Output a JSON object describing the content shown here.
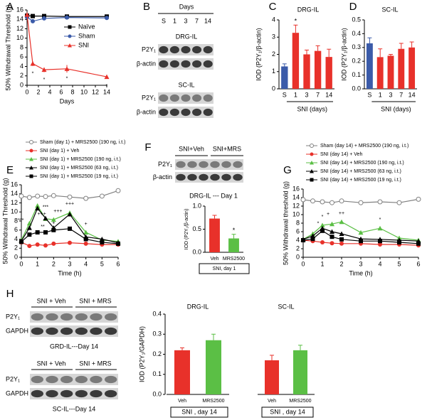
{
  "chart_data": [
    {
      "type": "line",
      "panel": "A",
      "ylabel": "50% Withdrawal Threshold (g)",
      "xlabel": "Days",
      "xlim": [
        0,
        14
      ],
      "xticks": [
        0,
        2,
        4,
        6,
        8,
        10,
        12,
        14
      ],
      "ylim": [
        0,
        16
      ],
      "yticks": [
        0,
        2,
        4,
        6,
        8,
        10,
        12,
        14,
        16
      ],
      "legend": "right",
      "series": [
        {
          "name": "Naïve",
          "color": "#000000",
          "marker": "square",
          "x": [
            0,
            1,
            3,
            7,
            14
          ],
          "values": [
            14.8,
            14.7,
            14.7,
            14.6,
            14.6
          ]
        },
        {
          "name": "Sham",
          "color": "#3b5ba9",
          "marker": "circle",
          "x": [
            0,
            1,
            3,
            7,
            14
          ],
          "values": [
            14.5,
            13.6,
            14.2,
            14.4,
            14.3
          ]
        },
        {
          "name": "SNI",
          "color": "#e8312a",
          "marker": "triangle",
          "x": [
            0,
            1,
            3,
            7,
            14
          ],
          "values": [
            15.0,
            4.6,
            3.3,
            3.5,
            1.8
          ],
          "errors": [
            0.3,
            0.5,
            0.5,
            0.8,
            0.4
          ]
        }
      ],
      "annotations": [
        "*",
        "*",
        "*",
        "*"
      ]
    },
    {
      "type": "bar",
      "panel": "C",
      "title": "DRG-IL",
      "ylabel": "IOD (P2Y₁/β-actin)",
      "xlabel": "SNI (days)",
      "categories": [
        "S",
        "1",
        "3",
        "7",
        "14"
      ],
      "values": [
        1.3,
        3.25,
        2.0,
        2.2,
        1.85
      ],
      "errors": [
        0.15,
        0.45,
        0.25,
        0.3,
        0.45
      ],
      "colors": [
        "#3b5ba9",
        "#e8312a",
        "#e8312a",
        "#e8312a",
        "#e8312a"
      ],
      "ylim": [
        0,
        4
      ],
      "yticks": [
        0,
        1,
        2,
        3,
        4
      ],
      "annotations": [
        "*"
      ]
    },
    {
      "type": "bar",
      "panel": "D",
      "title": "SC-IL",
      "ylabel": "IOD (P2Y₁/β-actin)",
      "xlabel": "SNI (days)",
      "categories": [
        "S",
        "1",
        "3",
        "7",
        "14"
      ],
      "values": [
        0.33,
        0.23,
        0.24,
        0.29,
        0.3
      ],
      "errors": [
        0.04,
        0.06,
        0.01,
        0.04,
        0.04
      ],
      "colors": [
        "#3b5ba9",
        "#e8312a",
        "#e8312a",
        "#e8312a",
        "#e8312a"
      ],
      "ylim": [
        0,
        0.5
      ],
      "yticks": [
        {
          "value": 0,
          "label": "0.0"
        },
        0.1,
        0.2,
        0.3,
        0.4,
        0.5
      ],
      "annotations": []
    },
    {
      "type": "line",
      "panel": "E",
      "ylabel": "50% Withdrawal Threshold (g)",
      "xlabel": "Time (h)",
      "xlim": [
        0,
        6
      ],
      "xticks": [
        0,
        1,
        2,
        3,
        4,
        5,
        6
      ],
      "ylim": [
        0,
        16
      ],
      "yticks": [
        0,
        2,
        4,
        6,
        8,
        10,
        12,
        14,
        16
      ],
      "legend": "top",
      "series": [
        {
          "name": "Sham (day 1) + MRS2500 (190 ng, i.t.)",
          "color": "#808080",
          "marker": "open-circle",
          "x": [
            0,
            0.5,
            1,
            1.5,
            2,
            3,
            4,
            5,
            6
          ],
          "values": [
            13.5,
            13.2,
            13.5,
            13.4,
            13.6,
            13.3,
            13.0,
            13.5,
            14.7
          ]
        },
        {
          "name": "SNI (day 1) + Veh",
          "color": "#e8312a",
          "marker": "circle",
          "x": [
            0,
            0.5,
            1,
            1.5,
            2,
            3,
            4,
            5,
            6
          ],
          "values": [
            3.3,
            2.5,
            2.8,
            2.6,
            3.0,
            3.2,
            3.0,
            2.8,
            2.8
          ]
        },
        {
          "name": "SNI (day 1) + MRS2500 (190 ng, i.t.)",
          "color": "#5bbf45",
          "marker": "triangle",
          "x": [
            0,
            0.5,
            1,
            1.5,
            2,
            3,
            4,
            5,
            6
          ],
          "values": [
            3.8,
            7.5,
            11.4,
            8.5,
            8.3,
            9.8,
            5.5,
            3.8,
            3.5
          ]
        },
        {
          "name": "SNI (day 1) + MRS2500 (63 ng, i.t.)",
          "color": "#000000",
          "marker": "triangle",
          "x": [
            0,
            0.5,
            1,
            1.5,
            2,
            3,
            4,
            5,
            6
          ],
          "values": [
            3.6,
            6.5,
            10.8,
            8.6,
            6.5,
            9.5,
            4.5,
            4.0,
            3.2
          ]
        },
        {
          "name": "SNI (day 1) + MRS2500 (19 ng, i.t.)",
          "color": "#000000",
          "marker": "square",
          "x": [
            0,
            0.5,
            1,
            1.5,
            2,
            3,
            4,
            5,
            6
          ],
          "values": [
            3.4,
            5.0,
            5.5,
            5.5,
            6.0,
            6.3,
            4.0,
            3.3,
            3.0
          ]
        }
      ],
      "annotations": [
        "***",
        "***",
        "**",
        "+++",
        "+",
        "+++",
        "+++",
        "+"
      ]
    },
    {
      "type": "bar",
      "title": "DRG-IL --- Day 1",
      "ylabel": "IOD (P2Y₁/β-actin)",
      "xlabel": "SNI, day 1",
      "categories": [
        "Veh",
        "MRS2500"
      ],
      "values": [
        0.73,
        0.3
      ],
      "errors": [
        0.07,
        0.09
      ],
      "colors": [
        "#e8312a",
        "#5bbf45"
      ],
      "ylim": [
        0,
        1
      ],
      "yticks": [
        {
          "value": 0,
          "label": "0.0"
        },
        0.5,
        {
          "value": 1,
          "label": "1.0"
        }
      ],
      "annotations": [
        "*"
      ]
    },
    {
      "type": "line",
      "panel": "G",
      "ylabel": "50% Withdrawal threshold (g)",
      "xlabel": "Time (h)",
      "xlim": [
        0,
        6
      ],
      "xticks": [
        0,
        1,
        2,
        3,
        4,
        5,
        6
      ],
      "ylim": [
        0,
        16
      ],
      "yticks": [
        0,
        2,
        4,
        6,
        8,
        10,
        12,
        14,
        16
      ],
      "legend": "top",
      "series": [
        {
          "name": "Sham (day 14) + MRS2500 (190 ng, i.t.)",
          "color": "#808080",
          "marker": "open-circle",
          "x": [
            0,
            0.5,
            1,
            1.5,
            2,
            3,
            4,
            5,
            6
          ],
          "values": [
            13.5,
            13.2,
            13.0,
            12.8,
            13.2,
            12.8,
            13.0,
            12.8,
            13.6
          ]
        },
        {
          "name": "SNI (day 14) + Veh",
          "color": "#e8312a",
          "marker": "circle",
          "x": [
            0,
            0.5,
            1,
            1.5,
            2,
            3,
            4,
            5,
            6
          ],
          "values": [
            4.0,
            3.8,
            3.5,
            3.3,
            3.2,
            3.2,
            3.0,
            3.0,
            2.8
          ]
        },
        {
          "name": "SNI (day 14) + MRS2500 (190 ng, i.t.)",
          "color": "#5bbf45",
          "marker": "triangle",
          "x": [
            0,
            0.5,
            1,
            1.5,
            2,
            3,
            4,
            5,
            6
          ],
          "values": [
            4.2,
            5.5,
            7.5,
            7.8,
            8.3,
            5.8,
            6.8,
            4.5,
            4.0
          ]
        },
        {
          "name": "SNI (day 14) + MRS2500 (63 ng, i.t.)",
          "color": "#000000",
          "marker": "triangle",
          "x": [
            0,
            0.5,
            1,
            1.5,
            2,
            3,
            4,
            5,
            6
          ],
          "values": [
            4.2,
            5.0,
            6.8,
            6.0,
            5.5,
            4.3,
            4.2,
            4.0,
            3.8
          ]
        },
        {
          "name": "SNI (day 14) + MRS2500 (19 ng, i.t.)",
          "color": "#000000",
          "marker": "square",
          "x": [
            0,
            0.5,
            1,
            1.5,
            2,
            3,
            4,
            5,
            6
          ],
          "values": [
            4.0,
            4.3,
            6.2,
            4.8,
            4.2,
            3.8,
            3.8,
            3.5,
            3.2
          ]
        }
      ],
      "annotations": [
        "*",
        "*",
        "++",
        "*",
        "+"
      ]
    },
    {
      "type": "grouped-bar",
      "ylabel": "IOD (P2Y₁/GAPDH)",
      "ylim": [
        0,
        0.4
      ],
      "yticks": [
        {
          "value": 0,
          "label": "0.0"
        },
        0.1,
        0.2,
        0.3,
        0.4
      ],
      "groups": [
        {
          "title": "DRG-IL",
          "xlabel": "SNI , day 14",
          "categories": [
            "Veh",
            "MRS2500"
          ],
          "values": [
            0.22,
            0.27
          ],
          "errors": [
            0.012,
            0.03
          ],
          "colors": [
            "#e8312a",
            "#5bbf45"
          ]
        },
        {
          "title": "SC-IL",
          "xlabel": "SNI , day 14",
          "categories": [
            "Veh",
            "MRS2500"
          ],
          "values": [
            0.17,
            0.22
          ],
          "errors": [
            0.025,
            0.025
          ],
          "colors": [
            "#e8312a",
            "#5bbf45"
          ]
        }
      ]
    }
  ],
  "blots": {
    "B": {
      "panel": "B",
      "header": "Days",
      "lanes": [
        "S",
        "1",
        "3",
        "7",
        "14"
      ],
      "sections": [
        {
          "title": "DRG-IL",
          "rows": [
            "P2Y₁",
            "β-actin"
          ]
        },
        {
          "title": "SC-IL",
          "rows": [
            "P2Y₁",
            "β-actin"
          ]
        }
      ]
    },
    "F": {
      "panel": "F",
      "lanes": [
        "SNI+Veh",
        "SNI+MRS"
      ],
      "rows": [
        "P2Y₁",
        "β-actin"
      ]
    },
    "H": {
      "panel": "H",
      "sections": [
        {
          "lanes": [
            "SNI + Veh",
            "SNI + MRS"
          ],
          "rows": [
            "P2Y₁",
            "GAPDH"
          ],
          "caption": "GRD-IL---Day 14"
        },
        {
          "lanes": [
            "SNI + Veh",
            "SNI + MRS"
          ],
          "rows": [
            "P2Y₁",
            "GAPDH"
          ],
          "caption": "SC-IL---Day 14"
        }
      ]
    }
  }
}
